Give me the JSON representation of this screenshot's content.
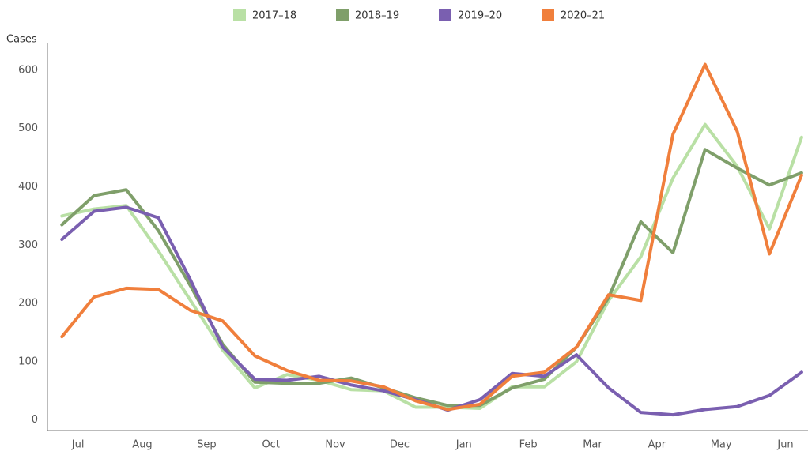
{
  "chart_data": {
    "type": "line",
    "y_label": "Cases",
    "x": [
      0,
      1,
      2,
      3,
      4,
      5,
      6,
      7,
      8,
      9,
      10,
      11,
      12,
      13,
      14,
      15,
      16,
      17,
      18,
      19,
      20,
      21,
      22,
      23
    ],
    "xlim": [
      -0.45,
      23.2
    ],
    "xticks": [
      {
        "value": 0.5,
        "label": "Jul"
      },
      {
        "value": 2.5,
        "label": "Aug"
      },
      {
        "value": 4.5,
        "label": "Sep"
      },
      {
        "value": 6.5,
        "label": "Oct"
      },
      {
        "value": 8.5,
        "label": "Nov"
      },
      {
        "value": 10.5,
        "label": "Dec"
      },
      {
        "value": 12.5,
        "label": "Jan"
      },
      {
        "value": 14.5,
        "label": "Feb"
      },
      {
        "value": 16.5,
        "label": "Mar"
      },
      {
        "value": 18.5,
        "label": "Apr"
      },
      {
        "value": 20.5,
        "label": "May"
      },
      {
        "value": 22.5,
        "label": "Jun"
      }
    ],
    "ylim": [
      -18,
      646
    ],
    "yticks": [
      0,
      100,
      200,
      300,
      400,
      500,
      600
    ],
    "series": [
      {
        "name": "2017–18",
        "color": "#b9e0a5",
        "values": [
          350,
          362,
          368,
          290,
          205,
          120,
          55,
          78,
          68,
          52,
          50,
          22,
          22,
          20,
          57,
          57,
          100,
          205,
          280,
          415,
          507,
          435,
          328,
          485
        ]
      },
      {
        "name": "2018–19",
        "color": "#7f9f6a",
        "values": [
          335,
          385,
          395,
          325,
          230,
          130,
          65,
          63,
          63,
          72,
          55,
          38,
          25,
          25,
          55,
          70,
          125,
          210,
          340,
          287,
          464,
          432,
          403,
          424
        ]
      },
      {
        "name": "2019–20",
        "color": "#7a5fb0",
        "values": [
          310,
          358,
          365,
          347,
          240,
          125,
          70,
          68,
          75,
          60,
          50,
          35,
          17,
          35,
          80,
          75,
          112,
          55,
          13,
          9,
          18,
          23,
          42,
          82
        ]
      },
      {
        "name": "2020–21",
        "color": "#f07f3c",
        "values": [
          143,
          211,
          226,
          224,
          188,
          170,
          110,
          85,
          68,
          67,
          57,
          33,
          18,
          27,
          75,
          82,
          125,
          215,
          205,
          490,
          610,
          495,
          285,
          420
        ]
      }
    ]
  }
}
